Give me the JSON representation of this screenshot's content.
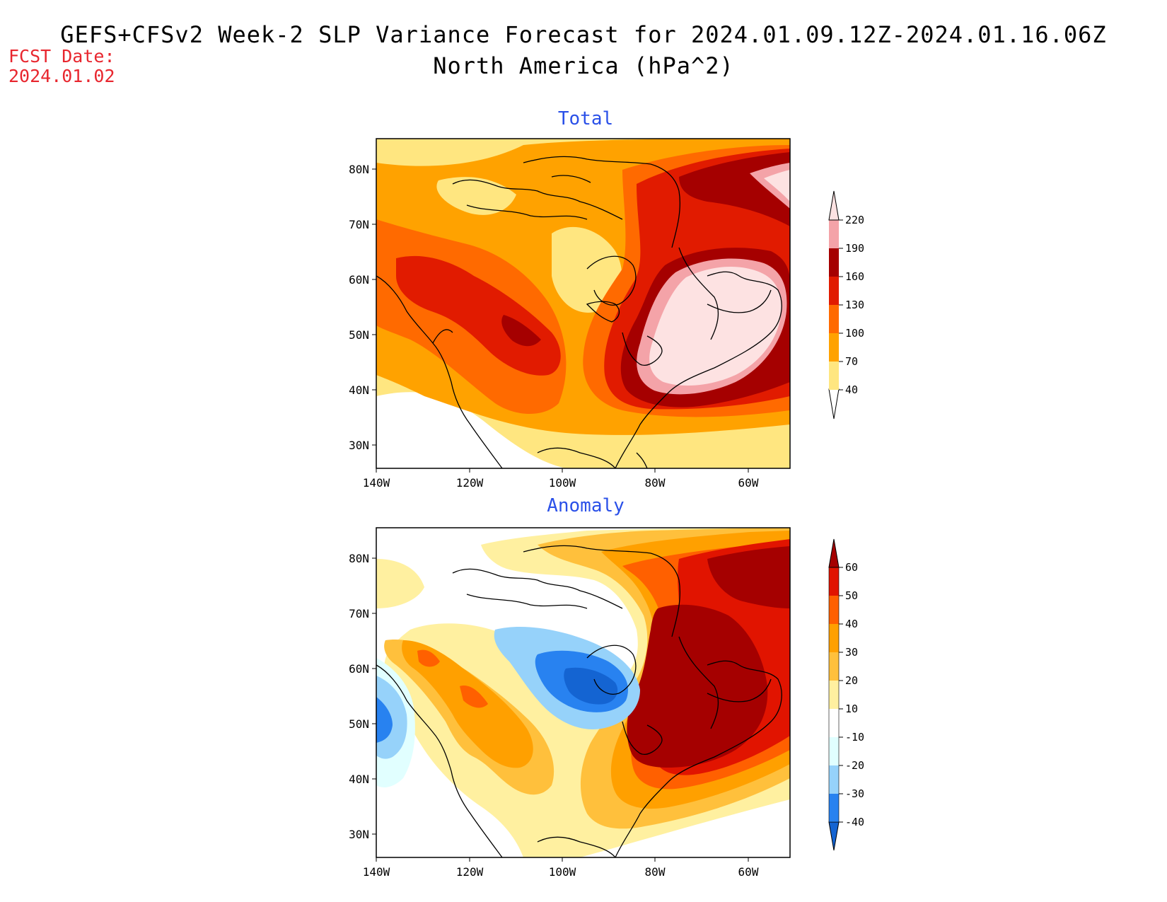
{
  "header": {
    "title_line1": "GEFS+CFSv2 Week-2 SLP Variance Forecast for 2024.01.09.12Z-2024.01.16.06Z",
    "title_line2": "North America (hPa^2)",
    "fcst_label": "FCST Date:",
    "fcst_date": "2024.01.02"
  },
  "axes": {
    "lon_labels": [
      "140W",
      "120W",
      "100W",
      "80W",
      "60W"
    ],
    "lat_labels": [
      "80N",
      "70N",
      "60N",
      "50N",
      "40N",
      "30N"
    ]
  },
  "panels": [
    {
      "title": "Total",
      "colorbar": {
        "labels": [
          "40",
          "70",
          "100",
          "130",
          "160",
          "190",
          "220"
        ],
        "colors": [
          "#ffe680",
          "#ffa200",
          "#ff6a00",
          "#e11b00",
          "#a50000",
          "#f4a3a8",
          "#fde2e2"
        ]
      }
    },
    {
      "title": "Anomaly",
      "colorbar": {
        "labels": [
          "-40",
          "-30",
          "-20",
          "-10",
          "10",
          "20",
          "30",
          "40",
          "50",
          "60"
        ],
        "colors": [
          "#1464d2",
          "#2882f0",
          "#96d2fa",
          "#e1ffff",
          "#ffffff",
          "#fff0a0",
          "#ffc03c",
          "#ffa000",
          "#ff6000",
          "#e11400",
          "#a50000"
        ]
      }
    }
  ],
  "colors": {
    "title": "#000000",
    "fcst": "#e8262e",
    "panel_title": "#2a50e8"
  }
}
